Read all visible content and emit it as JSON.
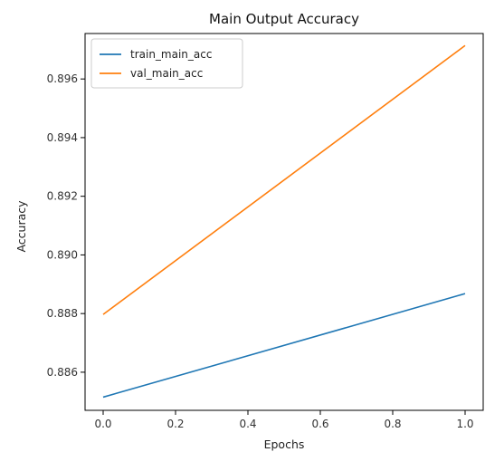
{
  "chart_data": {
    "type": "line",
    "title": "Main Output Accuracy",
    "xlabel": "Epochs",
    "ylabel": "Accuracy",
    "x": [
      0.0,
      1.0
    ],
    "xlim": [
      -0.05,
      1.05
    ],
    "ylim": [
      0.8847,
      0.89755
    ],
    "xticks": [
      0.0,
      0.2,
      0.4,
      0.6,
      0.8,
      1.0
    ],
    "xtick_labels": [
      "0.0",
      "0.2",
      "0.4",
      "0.6",
      "0.8",
      "1.0"
    ],
    "yticks": [
      0.886,
      0.888,
      0.89,
      0.892,
      0.894,
      0.896
    ],
    "ytick_labels": [
      "0.886",
      "0.888",
      "0.890",
      "0.892",
      "0.894",
      "0.896"
    ],
    "grid": false,
    "legend_position": "top-left",
    "series": [
      {
        "name": "train_main_acc",
        "values": [
          0.88515,
          0.88868
        ],
        "color": "#1f77b4"
      },
      {
        "name": "val_main_acc",
        "values": [
          0.88797,
          0.89714
        ],
        "color": "#ff7f0e"
      }
    ]
  }
}
